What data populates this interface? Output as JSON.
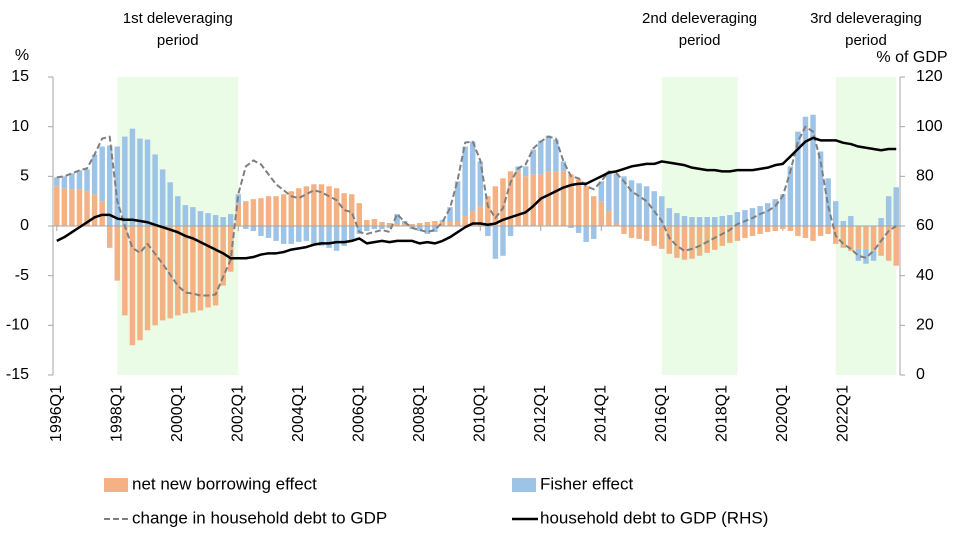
{
  "chart_data": {
    "type": "combo",
    "y_label": "%",
    "y2_label": "% of GDP",
    "categories": [
      "1996Q1",
      null,
      null,
      null,
      null,
      null,
      null,
      null,
      "1998Q1",
      null,
      null,
      null,
      null,
      null,
      null,
      null,
      "2000Q1",
      null,
      null,
      null,
      null,
      null,
      null,
      null,
      "2002Q1",
      null,
      null,
      null,
      null,
      null,
      null,
      null,
      "2004Q1",
      null,
      null,
      null,
      null,
      null,
      null,
      null,
      "2006Q1",
      null,
      null,
      null,
      null,
      null,
      null,
      null,
      "2008Q1",
      null,
      null,
      null,
      null,
      null,
      null,
      null,
      "2010Q1",
      null,
      null,
      null,
      null,
      null,
      null,
      null,
      "2012Q1",
      null,
      null,
      null,
      null,
      null,
      null,
      null,
      "2014Q1",
      null,
      null,
      null,
      null,
      null,
      null,
      null,
      "2016Q1",
      null,
      null,
      null,
      null,
      null,
      null,
      null,
      "2018Q1",
      null,
      null,
      null,
      null,
      null,
      null,
      null,
      "2020Q1",
      null,
      null,
      null,
      null,
      null,
      null,
      null,
      "2022Q1",
      null,
      null,
      null,
      null,
      null,
      null,
      null
    ],
    "ylim": [
      -15,
      15
    ],
    "yticks": [
      -15,
      -10,
      -5,
      0,
      5,
      10,
      15
    ],
    "y2lim": [
      0,
      120
    ],
    "y2ticks": [
      0,
      20,
      40,
      60,
      80,
      100,
      120
    ],
    "periods": [
      {
        "label_lines": [
          "1st deleveraging",
          "period"
        ],
        "start": 8,
        "end": 24
      },
      {
        "label_lines": [
          "2nd deleveraging",
          "period"
        ],
        "start": 80,
        "end": 90
      },
      {
        "label_lines": [
          "3rd deleveraging",
          "period"
        ],
        "start": 103,
        "end": 111
      }
    ],
    "period_color": "#eafbe6",
    "series": [
      {
        "name": "net new borrowing effect",
        "type": "bar",
        "color": "#f4b183",
        "values": [
          4.0,
          3.8,
          3.7,
          3.7,
          3.5,
          3.2,
          2.5,
          -2.2,
          -5.5,
          -9.0,
          -12.0,
          -11.5,
          -10.5,
          -10.0,
          -9.5,
          -9.3,
          -9.0,
          -8.8,
          -8.7,
          -8.5,
          -8.2,
          -8.0,
          -6.0,
          -4.6,
          2.2,
          2.5,
          2.7,
          2.8,
          3.0,
          3.0,
          3.2,
          3.5,
          3.8,
          4.0,
          4.2,
          4.2,
          4.0,
          3.8,
          3.3,
          3.2,
          2.3,
          0.6,
          0.7,
          0.4,
          0.3,
          0.2,
          0.2,
          0.2,
          0.3,
          0.4,
          0.5,
          0.4,
          0.4,
          0.5,
          1.0,
          1.5,
          2.0,
          3.0,
          4.0,
          4.8,
          5.5,
          5.5,
          5.0,
          5.2,
          5.2,
          5.5,
          5.5,
          5.5,
          5.2,
          4.7,
          4.0,
          3.0,
          2.5,
          1.5,
          0.3,
          -0.8,
          -1.2,
          -1.3,
          -1.5,
          -2.0,
          -2.3,
          -2.8,
          -3.2,
          -3.4,
          -3.3,
          -3.0,
          -2.7,
          -2.4,
          -2.0,
          -1.7,
          -1.5,
          -1.2,
          -1.0,
          -0.8,
          -0.6,
          -0.5,
          -0.3,
          -0.5,
          -1.0,
          -1.2,
          -1.5,
          -1.0,
          -0.8,
          -1.8,
          -2.2,
          -2.5,
          -2.3,
          -2.3,
          -2.5,
          -3.0,
          -3.5,
          -4.0
        ]
      },
      {
        "name": "Fisher effect",
        "type": "bar",
        "color": "#9dc3e6",
        "values": [
          0.9,
          1.2,
          1.6,
          1.9,
          2.2,
          4.0,
          5.5,
          8.1,
          8.0,
          9.0,
          9.8,
          8.8,
          8.7,
          7.2,
          5.7,
          4.4,
          3.0,
          2.1,
          1.9,
          1.5,
          1.3,
          1.1,
          0.9,
          1.2,
          1.0,
          -0.3,
          -0.5,
          -1.0,
          -1.2,
          -1.5,
          -1.8,
          -1.8,
          -1.6,
          -1.5,
          -1.8,
          -2.0,
          -2.2,
          -2.5,
          -2.0,
          -1.5,
          -0.8,
          -0.5,
          -0.3,
          -0.3,
          -0.2,
          1.0,
          0.3,
          -0.3,
          -0.5,
          -0.8,
          -0.6,
          0.2,
          1.5,
          4.0,
          7.0,
          7.0,
          4.5,
          -1.0,
          -3.3,
          -3.0,
          -1.0,
          0.5,
          1.0,
          2.5,
          3.4,
          3.6,
          3.2,
          1.0,
          -0.2,
          -0.7,
          -1.6,
          -1.3,
          2.0,
          4.0,
          5.0,
          5.0,
          4.6,
          4.3,
          4.0,
          3.5,
          3.0,
          1.8,
          1.3,
          1.0,
          0.9,
          0.9,
          0.9,
          0.9,
          1.0,
          1.1,
          1.4,
          1.6,
          1.8,
          2.0,
          2.3,
          2.7,
          3.2,
          6.0,
          9.5,
          11.0,
          11.2,
          7.5,
          4.8,
          2.5,
          0.5,
          1.0,
          -1.2,
          -1.5,
          -1.0,
          0.8,
          3.0,
          3.9
        ]
      },
      {
        "name": "change in household debt to GDP",
        "type": "line",
        "dashed": true,
        "color": "#7f7f7f",
        "values": [
          4.9,
          5.0,
          5.3,
          5.6,
          5.8,
          7.2,
          8.8,
          9.0,
          2.5,
          0.0,
          -2.2,
          -2.7,
          -1.8,
          -2.8,
          -3.8,
          -4.9,
          -6.0,
          -6.7,
          -6.8,
          -7.0,
          -7.0,
          -6.9,
          -5.1,
          -3.4,
          3.2,
          6.0,
          6.6,
          6.2,
          5.2,
          4.2,
          3.6,
          3.0,
          2.8,
          3.2,
          3.6,
          3.4,
          3.0,
          2.6,
          1.6,
          1.4,
          -0.6,
          -0.8,
          -0.6,
          -0.4,
          -0.6,
          1.2,
          0.4,
          -0.2,
          -0.4,
          -0.6,
          -0.4,
          0.4,
          1.8,
          4.6,
          8.4,
          8.5,
          6.6,
          2.0,
          0.8,
          1.8,
          4.4,
          5.8,
          6.2,
          7.8,
          8.5,
          9.0,
          8.8,
          6.5,
          5.0,
          4.8,
          4.0,
          3.7,
          4.5,
          5.5,
          5.3,
          4.5,
          3.5,
          3.0,
          2.5,
          1.5,
          0.5,
          -1.2,
          -2.0,
          -2.5,
          -2.3,
          -2.0,
          -1.6,
          -1.2,
          -0.8,
          -0.4,
          0.2,
          0.5,
          0.8,
          1.2,
          1.5,
          2.0,
          3.0,
          5.5,
          8.5,
          10.0,
          9.5,
          6.5,
          2.0,
          -1.0,
          -1.8,
          -2.3,
          -3.0,
          -3.2,
          -2.5,
          -1.5,
          -0.5,
          0.0
        ]
      },
      {
        "name": "household debt to GDP (RHS)",
        "type": "line",
        "dashed": false,
        "axis": "y2",
        "color": "#000000",
        "values": [
          54,
          55.5,
          57.5,
          59.5,
          61.5,
          63.5,
          64.5,
          64.5,
          63,
          62.5,
          62.5,
          62,
          61.5,
          60.5,
          59.5,
          58.5,
          57.5,
          56,
          55,
          53.5,
          52,
          50.5,
          49,
          47,
          47,
          47,
          47.5,
          48.5,
          49,
          49,
          49.5,
          50.5,
          51,
          51.5,
          52.5,
          53,
          53,
          53.5,
          53.5,
          54,
          55,
          53,
          53.5,
          54,
          53.5,
          54,
          54,
          54,
          53,
          53.5,
          53,
          54,
          55.5,
          57.5,
          59.5,
          61,
          61,
          60.5,
          61,
          62.5,
          63.5,
          64.5,
          65.5,
          68,
          71,
          72.5,
          74,
          75.5,
          76.5,
          77,
          77,
          78.5,
          80,
          81.5,
          82,
          83,
          84,
          84.5,
          85,
          85,
          86,
          85.5,
          85,
          84.5,
          83.5,
          83,
          82.5,
          82.5,
          82,
          82,
          82.5,
          82.5,
          82.5,
          83,
          83.5,
          84.5,
          85,
          88,
          91,
          94,
          95.5,
          94.5,
          94.5,
          94.5,
          93.5,
          93,
          92,
          91.5,
          91,
          90.5,
          91,
          91
        ]
      }
    ]
  }
}
